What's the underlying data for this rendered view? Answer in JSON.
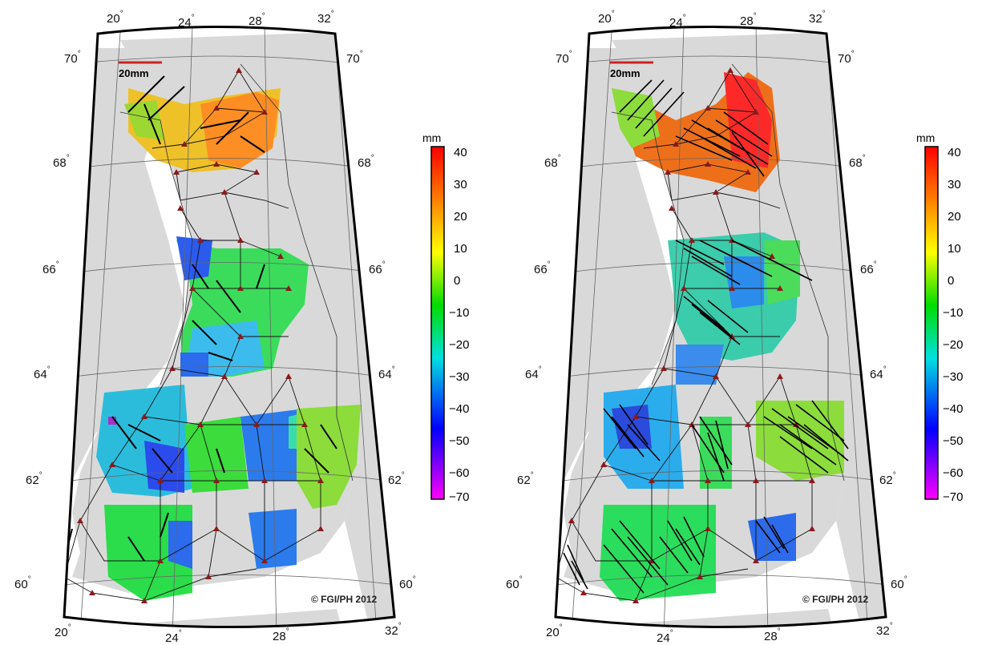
{
  "panels": [
    {
      "id": "left",
      "scale_label": "20mm",
      "copyright": "© FGI/PH 2012",
      "lon_labels_top": [
        "20",
        "24",
        "28",
        "32"
      ],
      "lon_labels_bottom": [
        "20",
        "24",
        "28",
        "32"
      ],
      "lat_labels": [
        "70",
        "68",
        "66",
        "64",
        "62",
        "60"
      ]
    },
    {
      "id": "right",
      "scale_label": "20mm",
      "copyright": "© FGI/PH 2012",
      "lon_labels_top": [
        "20",
        "24",
        "28",
        "32"
      ],
      "lon_labels_bottom": [
        "20",
        "24",
        "28",
        "32"
      ],
      "lat_labels": [
        "70",
        "68",
        "66",
        "64",
        "62",
        "60"
      ]
    }
  ],
  "colorbar": {
    "title": "mm",
    "ticks": [
      "40",
      "30",
      "20",
      "10",
      "0",
      "−10",
      "−20",
      "−30",
      "−40",
      "−50",
      "−60",
      "−70"
    ],
    "range": [
      -70,
      40
    ],
    "colors": [
      "#ff0000",
      "#ff7f00",
      "#ffff00",
      "#00dd00",
      "#00e0e0",
      "#0000ff",
      "#ff00ff"
    ]
  },
  "colors": {
    "land": "#d9d9d9",
    "network_line": "#111111",
    "triangle": "#8b1a1a",
    "scale_bar": "#cc2222"
  }
}
